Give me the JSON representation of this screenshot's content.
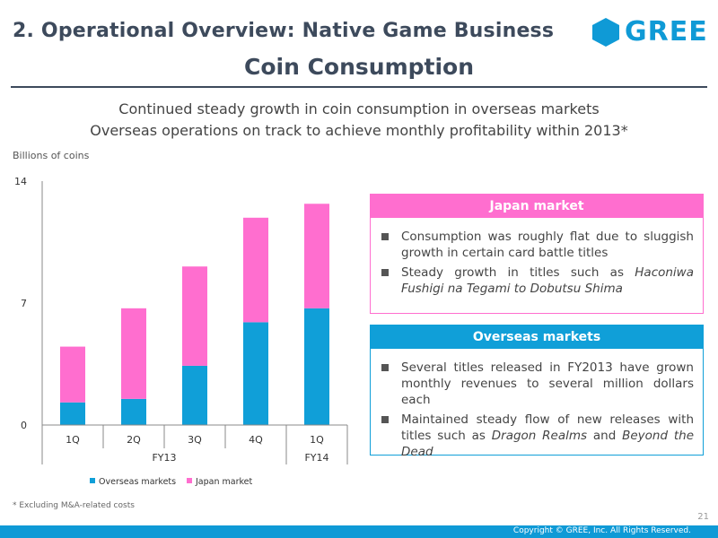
{
  "header": {
    "title": "2. Operational Overview: Native Game Business",
    "logo_text": "GREE",
    "subtitle": "Coin Consumption"
  },
  "lead": {
    "line1": "Continued steady growth in coin consumption in overseas markets",
    "line2": "Overseas operations on track to achieve monthly profitability within 2013*"
  },
  "colors": {
    "overseas": "#109fd8",
    "japan": "#ff6ecf",
    "brand": "#0f9ad6"
  },
  "chart_data": {
    "type": "bar",
    "stacked": true,
    "ylabel": "Billions of coins",
    "ylim": [
      0,
      14
    ],
    "yticks": [
      "0",
      "7",
      "14"
    ],
    "categories": [
      "1Q",
      "2Q",
      "3Q",
      "4Q",
      "1Q"
    ],
    "groups": [
      {
        "label": "FY13",
        "count": 4
      },
      {
        "label": "FY14",
        "count": 1
      }
    ],
    "series": [
      {
        "name": "Overseas markets",
        "values": [
          1.3,
          1.5,
          3.4,
          5.9,
          6.7
        ]
      },
      {
        "name": "Japan market",
        "values": [
          3.2,
          5.2,
          5.7,
          6.0,
          6.0
        ]
      }
    ],
    "legend": "bottom"
  },
  "japan_box": {
    "title": "Japan market",
    "items": [
      {
        "text": "Consumption was roughly flat due to sluggish growth in certain card battle titles"
      },
      {
        "pre": "Steady growth in titles such as ",
        "em": "Haconiwa Fushigi na Tegami to Dobutsu Shima"
      }
    ]
  },
  "overseas_box": {
    "title": "Overseas markets",
    "items": [
      {
        "text": "Several titles released in FY2013 have grown monthly revenues to several million dollars each"
      },
      {
        "pre": "Maintained steady flow of new releases with titles such as ",
        "em1": "Dragon Realms",
        "mid": " and ",
        "em2": "Beyond the Dead"
      }
    ]
  },
  "footnote": "* Excluding M&A-related costs",
  "page_number": "21",
  "copyright": "Copyright © GREE, Inc. All Rights Reserved."
}
